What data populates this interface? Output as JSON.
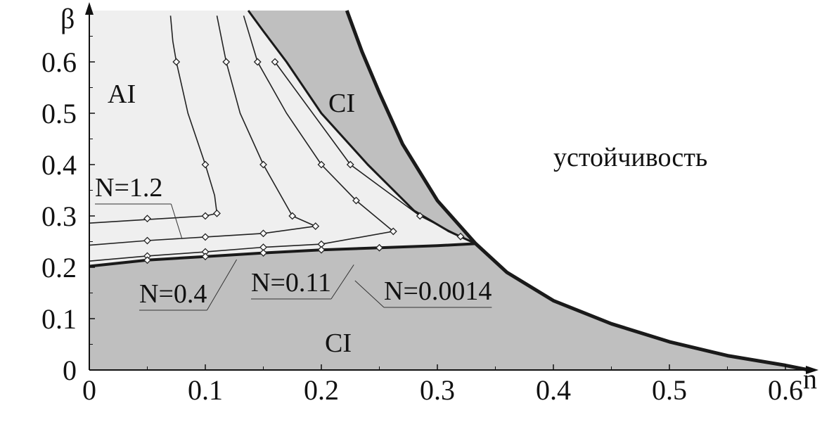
{
  "chart_data": {
    "type": "line",
    "xlabel": "n",
    "ylabel": "β",
    "xlim": [
      0,
      0.63
    ],
    "ylim": [
      0,
      0.7
    ],
    "xticks": [
      "0",
      "0.1",
      "0.2",
      "0.3",
      "0.4",
      "0.5",
      "0.6"
    ],
    "yticks": [
      "0",
      "0.1",
      "0.2",
      "0.3",
      "0.4",
      "0.5",
      "0.6"
    ],
    "grid": false,
    "regions": [
      {
        "label": "AI",
        "fill": "#efefef"
      },
      {
        "label": "CI",
        "fill": "#bfbfbf"
      },
      {
        "label": "CI",
        "fill": "#bfbfbf"
      },
      {
        "label": "устойчивость",
        "fill": "#ffffff"
      }
    ],
    "boundaries": [
      {
        "points": [
          [
            0.137,
            0.7
          ],
          [
            0.15,
            0.66
          ],
          [
            0.17,
            0.6
          ],
          [
            0.2,
            0.5
          ],
          [
            0.24,
            0.4
          ],
          [
            0.28,
            0.31
          ],
          [
            0.31,
            0.27
          ],
          [
            0.333,
            0.246
          ]
        ]
      },
      {
        "points": [
          [
            0.222,
            0.7
          ],
          [
            0.235,
            0.62
          ],
          [
            0.25,
            0.54
          ],
          [
            0.27,
            0.44
          ],
          [
            0.3,
            0.33
          ],
          [
            0.333,
            0.246
          ],
          [
            0.36,
            0.19
          ],
          [
            0.4,
            0.135
          ],
          [
            0.45,
            0.09
          ],
          [
            0.5,
            0.055
          ],
          [
            0.55,
            0.028
          ],
          [
            0.6,
            0.009
          ],
          [
            0.62,
            0.0
          ]
        ]
      },
      {
        "points": [
          [
            0.0,
            0.202
          ],
          [
            0.05,
            0.214
          ],
          [
            0.1,
            0.221
          ],
          [
            0.15,
            0.228
          ],
          [
            0.2,
            0.234
          ],
          [
            0.25,
            0.238
          ],
          [
            0.3,
            0.242
          ],
          [
            0.333,
            0.246
          ]
        ]
      }
    ],
    "series": [
      {
        "name": "N=1.2",
        "points": [
          [
            0.07,
            0.69
          ],
          [
            0.072,
            0.64
          ],
          [
            0.075,
            0.6
          ],
          [
            0.085,
            0.5
          ],
          [
            0.1,
            0.4
          ],
          [
            0.108,
            0.34
          ],
          [
            0.11,
            0.305
          ],
          [
            0.1,
            0.3
          ],
          [
            0.05,
            0.293
          ],
          [
            0.0,
            0.286
          ]
        ],
        "markers": [
          [
            0.075,
            0.6
          ],
          [
            0.1,
            0.4
          ],
          [
            0.11,
            0.305
          ],
          [
            0.1,
            0.3
          ],
          [
            0.05,
            0.295
          ]
        ]
      },
      {
        "name": "N=0.4",
        "points": [
          [
            0.11,
            0.69
          ],
          [
            0.118,
            0.6
          ],
          [
            0.13,
            0.5
          ],
          [
            0.15,
            0.4
          ],
          [
            0.175,
            0.3
          ],
          [
            0.195,
            0.28
          ],
          [
            0.15,
            0.266
          ],
          [
            0.1,
            0.259
          ],
          [
            0.05,
            0.252
          ],
          [
            0.0,
            0.243
          ]
        ],
        "markers": [
          [
            0.118,
            0.6
          ],
          [
            0.15,
            0.4
          ],
          [
            0.175,
            0.3
          ],
          [
            0.195,
            0.28
          ],
          [
            0.15,
            0.266
          ],
          [
            0.1,
            0.259
          ],
          [
            0.05,
            0.252
          ]
        ]
      },
      {
        "name": "N=0.11",
        "points": [
          [
            0.133,
            0.69
          ],
          [
            0.145,
            0.6
          ],
          [
            0.17,
            0.5
          ],
          [
            0.2,
            0.4
          ],
          [
            0.23,
            0.33
          ],
          [
            0.262,
            0.27
          ],
          [
            0.2,
            0.245
          ],
          [
            0.15,
            0.239
          ],
          [
            0.1,
            0.23
          ],
          [
            0.05,
            0.222
          ],
          [
            0.0,
            0.212
          ]
        ],
        "markers": [
          [
            0.145,
            0.6
          ],
          [
            0.2,
            0.4
          ],
          [
            0.23,
            0.33
          ],
          [
            0.262,
            0.27
          ],
          [
            0.2,
            0.245
          ],
          [
            0.15,
            0.239
          ],
          [
            0.1,
            0.23
          ],
          [
            0.05,
            0.222
          ]
        ]
      },
      {
        "name": "N=0.0014",
        "points": [
          [
            0.16,
            0.6
          ],
          [
            0.225,
            0.4
          ],
          [
            0.285,
            0.3
          ],
          [
            0.32,
            0.26
          ]
        ],
        "markers": [
          [
            0.05,
            0.214
          ],
          [
            0.1,
            0.221
          ],
          [
            0.15,
            0.228
          ],
          [
            0.2,
            0.234
          ],
          [
            0.25,
            0.238
          ],
          [
            0.16,
            0.6
          ],
          [
            0.225,
            0.4
          ],
          [
            0.285,
            0.3
          ],
          [
            0.32,
            0.26
          ]
        ]
      }
    ],
    "annotations": [
      {
        "text": "N=1.2",
        "pointer": [
          0.08,
          0.255
        ]
      },
      {
        "text": "N=0.4",
        "pointer": [
          0.127,
          0.215
        ]
      },
      {
        "text": "N=0.11",
        "pointer": [
          0.228,
          0.205
        ]
      },
      {
        "text": "N=0.0014",
        "pointer": [
          0.229,
          0.174
        ]
      }
    ]
  }
}
